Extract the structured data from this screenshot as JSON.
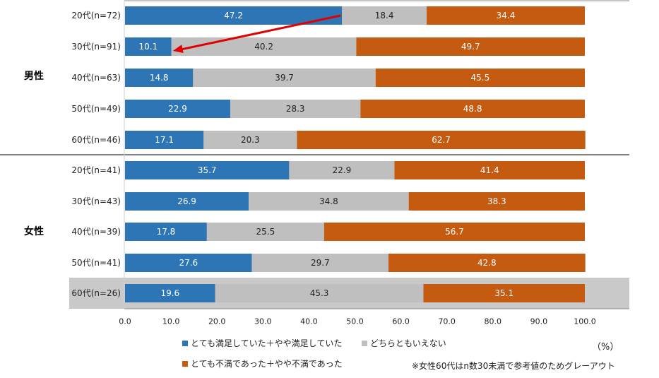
{
  "chart_data": {
    "type": "bar",
    "stacked": true,
    "orientation": "horizontal",
    "groups": [
      {
        "label": "男性",
        "categories": [
          "20代(n=72)",
          "30代(n=91)",
          "40代(n=63)",
          "50代(n=49)",
          "60代(n=46)"
        ]
      },
      {
        "label": "女性",
        "categories": [
          "20代(n=41)",
          "30代(n=43)",
          "40代(n=39)",
          "50代(n=41)",
          "60代(n=26)"
        ]
      }
    ],
    "series": [
      {
        "name": "とても満足していた＋やや満足していた",
        "color": "#2E75B6",
        "values": [
          47.2,
          10.1,
          14.8,
          22.9,
          17.1,
          35.7,
          26.9,
          17.8,
          27.6,
          19.6
        ]
      },
      {
        "name": "どちらともいえない",
        "color": "#BFBFBF",
        "values": [
          18.4,
          40.2,
          39.7,
          28.3,
          20.3,
          22.9,
          34.8,
          25.5,
          29.7,
          45.3
        ]
      },
      {
        "name": "とても不満であった＋やや不満であった",
        "color": "#C55A11",
        "values": [
          34.4,
          49.7,
          45.5,
          48.8,
          62.7,
          41.4,
          38.3,
          56.7,
          42.8,
          35.1
        ]
      }
    ],
    "xlim": [
      0,
      100
    ],
    "xticks": [
      "0.0",
      "10.0",
      "20.0",
      "30.0",
      "40.0",
      "50.0",
      "60.0",
      "70.0",
      "80.0",
      "90.0",
      "100.0"
    ],
    "unit_label": "（%）",
    "highlighted_row": 9,
    "arrow": {
      "from": "20代(n=72)",
      "to": "30代(n=91)",
      "color": "#E00000"
    },
    "grid": false,
    "legend_position": "bottom"
  },
  "footnote": "※女性60代はn数30未満で参考値のためグレーアウト"
}
